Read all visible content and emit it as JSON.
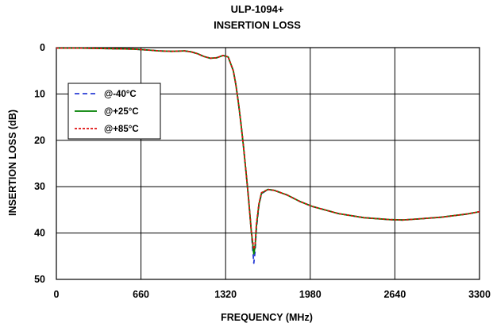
{
  "chart_data": {
    "type": "line",
    "title": "ULP-1094+",
    "subtitle": "INSERTION LOSS",
    "xlabel": "FREQUENCY (MHz)",
    "ylabel": "INSERTION LOSS (dB)",
    "xlim": [
      0,
      3300
    ],
    "ylim": [
      0,
      50
    ],
    "y_inverted": true,
    "x_ticks": [
      "0",
      "660",
      "1320",
      "1980",
      "2640",
      "3300"
    ],
    "x_tick_values": [
      0,
      660,
      1320,
      1980,
      2640,
      3300
    ],
    "y_ticks": [
      "0",
      "10",
      "20",
      "30",
      "40",
      "50"
    ],
    "y_tick_values": [
      0,
      10,
      20,
      30,
      40,
      50
    ],
    "grid": true,
    "legend_position": "left",
    "series": [
      {
        "name": "@-40°C",
        "color": "#2a3fd6",
        "style": "dashed",
        "x": [
          0,
          200,
          400,
          600,
          700,
          800,
          900,
          1000,
          1050,
          1100,
          1150,
          1200,
          1250,
          1300,
          1340,
          1380,
          1400,
          1420,
          1440,
          1460,
          1480,
          1500,
          1520,
          1540,
          1550,
          1560,
          1580,
          1600,
          1650,
          1700,
          1800,
          1900,
          2000,
          2200,
          2400,
          2600,
          2700,
          2800,
          3000,
          3200,
          3300
        ],
        "y": [
          0.1,
          0.1,
          0.2,
          0.3,
          0.5,
          0.7,
          0.8,
          0.7,
          0.9,
          1.3,
          1.9,
          2.3,
          2.2,
          1.7,
          2.0,
          5.0,
          8.0,
          12.0,
          16.5,
          21.5,
          27.0,
          33.0,
          39.5,
          46.5,
          44.0,
          39.0,
          34.0,
          31.5,
          30.6,
          30.8,
          31.8,
          33.2,
          34.3,
          35.8,
          36.7,
          37.1,
          37.2,
          37.0,
          36.6,
          35.9,
          35.4
        ]
      },
      {
        "name": "@+25°C",
        "color": "#008000",
        "style": "solid",
        "x": [
          0,
          200,
          400,
          600,
          700,
          800,
          900,
          1000,
          1050,
          1100,
          1150,
          1200,
          1250,
          1300,
          1340,
          1380,
          1400,
          1420,
          1440,
          1460,
          1480,
          1500,
          1520,
          1540,
          1550,
          1560,
          1580,
          1600,
          1650,
          1700,
          1800,
          1900,
          2000,
          2200,
          2400,
          2600,
          2700,
          2800,
          3000,
          3200,
          3300
        ],
        "y": [
          0.1,
          0.1,
          0.2,
          0.3,
          0.5,
          0.7,
          0.8,
          0.7,
          0.9,
          1.3,
          1.9,
          2.3,
          2.2,
          1.7,
          2.0,
          5.0,
          8.0,
          12.0,
          16.5,
          21.5,
          27.0,
          33.0,
          39.5,
          44.5,
          43.0,
          38.5,
          33.8,
          31.4,
          30.6,
          30.8,
          31.8,
          33.2,
          34.3,
          35.8,
          36.7,
          37.1,
          37.2,
          37.0,
          36.6,
          35.9,
          35.4
        ]
      },
      {
        "name": "@+85°C",
        "color": "#e01010",
        "style": "dotted",
        "x": [
          0,
          200,
          400,
          600,
          700,
          800,
          900,
          1000,
          1050,
          1100,
          1150,
          1200,
          1250,
          1300,
          1340,
          1380,
          1400,
          1420,
          1440,
          1460,
          1480,
          1500,
          1520,
          1540,
          1550,
          1560,
          1580,
          1600,
          1650,
          1700,
          1800,
          1900,
          2000,
          2200,
          2400,
          2600,
          2700,
          2800,
          3000,
          3200,
          3300
        ],
        "y": [
          0.1,
          0.1,
          0.2,
          0.3,
          0.5,
          0.7,
          0.8,
          0.7,
          0.9,
          1.3,
          1.9,
          2.3,
          2.2,
          1.7,
          2.0,
          5.0,
          8.0,
          12.0,
          16.5,
          21.5,
          27.0,
          33.0,
          39.5,
          43.5,
          42.5,
          38.0,
          33.6,
          31.3,
          30.6,
          30.8,
          31.8,
          33.2,
          34.3,
          35.8,
          36.7,
          37.1,
          37.2,
          37.0,
          36.6,
          35.9,
          35.4
        ]
      }
    ]
  }
}
